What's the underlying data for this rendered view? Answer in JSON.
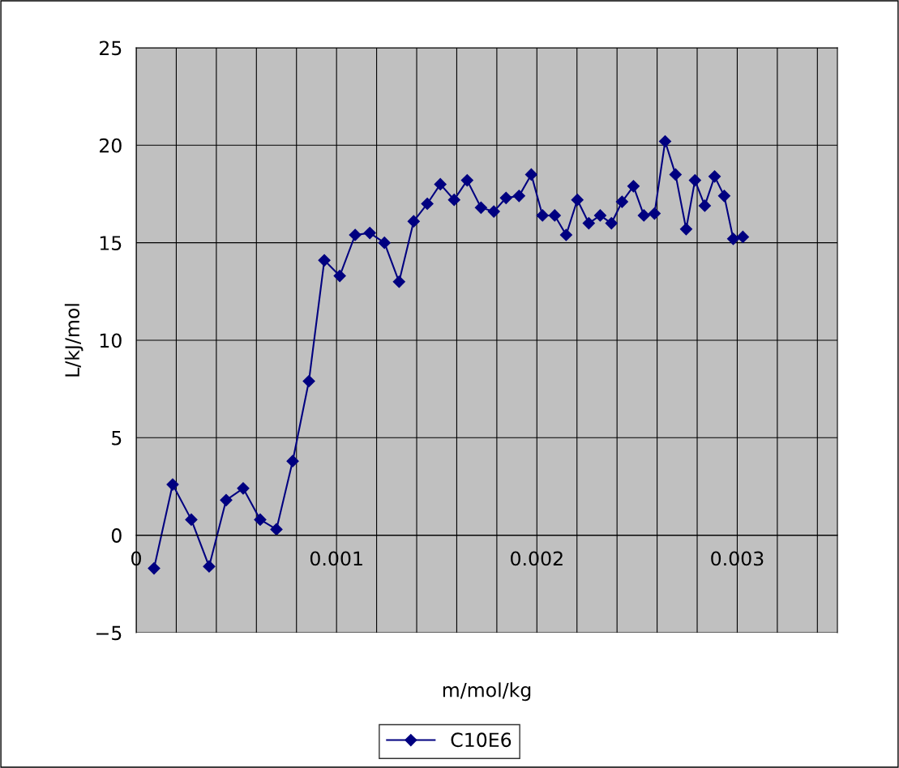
{
  "chart_data": {
    "type": "line",
    "xlabel": "m/mol/kg",
    "ylabel": "L/kJ/mol",
    "x": [
      8.9e-05,
      0.000182,
      0.000275,
      0.000364,
      0.000449,
      0.000534,
      0.000619,
      0.0007,
      0.000781,
      0.000862,
      0.000939,
      0.001016,
      0.001093,
      0.001166,
      0.001239,
      0.001312,
      0.001385,
      0.001453,
      0.001518,
      0.001587,
      0.001652,
      0.001721,
      0.001785,
      0.001846,
      0.001911,
      0.001972,
      0.002028,
      0.002089,
      0.002146,
      0.002202,
      0.002259,
      0.002316,
      0.002372,
      0.002425,
      0.002482,
      0.002534,
      0.002587,
      0.00264,
      0.002692,
      0.002745,
      0.002789,
      0.002838,
      0.002887,
      0.002935,
      0.00298,
      0.003028
    ],
    "series": [
      {
        "name": "C10E6",
        "color": "#000080",
        "values": [
          -1.7,
          2.6,
          0.8,
          -1.6,
          1.8,
          2.4,
          0.8,
          0.3,
          3.8,
          7.9,
          14.1,
          13.3,
          15.4,
          15.5,
          15.0,
          13.0,
          16.1,
          17.0,
          18.0,
          17.2,
          18.2,
          16.8,
          16.6,
          17.3,
          17.4,
          18.5,
          16.4,
          16.4,
          15.4,
          17.2,
          16.0,
          16.4,
          16.0,
          17.1,
          17.9,
          16.4,
          16.5,
          20.2,
          18.5,
          15.7,
          18.2,
          16.9,
          18.4,
          17.4,
          15.2,
          15.3
        ]
      }
    ],
    "xlim": [
      0,
      0.0035
    ],
    "xticks": [
      0,
      {
        "value": 0.0002,
        "label": null
      },
      {
        "value": 0.0004,
        "label": null
      },
      {
        "value": 0.0006,
        "label": null
      },
      {
        "value": 0.0008,
        "label": null
      },
      {
        "value": 0.001,
        "label": "0.001"
      },
      {
        "value": 0.0012,
        "label": null
      },
      {
        "value": 0.0014,
        "label": null
      },
      {
        "value": 0.0016,
        "label": null
      },
      {
        "value": 0.0018,
        "label": null
      },
      {
        "value": 0.002,
        "label": "0.002"
      },
      {
        "value": 0.0022,
        "label": null
      },
      {
        "value": 0.0024,
        "label": null
      },
      {
        "value": 0.0026,
        "label": null
      },
      {
        "value": 0.0028,
        "label": null
      },
      {
        "value": 0.003,
        "label": "0.003"
      },
      {
        "value": 0.0032,
        "label": null
      },
      {
        "value": 0.0034,
        "label": null
      }
    ],
    "ylim": [
      -5,
      25
    ],
    "yticks": [
      {
        "value": -5,
        "label": "−5"
      },
      0,
      5,
      10,
      15,
      20,
      25
    ],
    "grid": true,
    "legend": "bottom",
    "marker": "diamond",
    "line_style": "solid"
  }
}
